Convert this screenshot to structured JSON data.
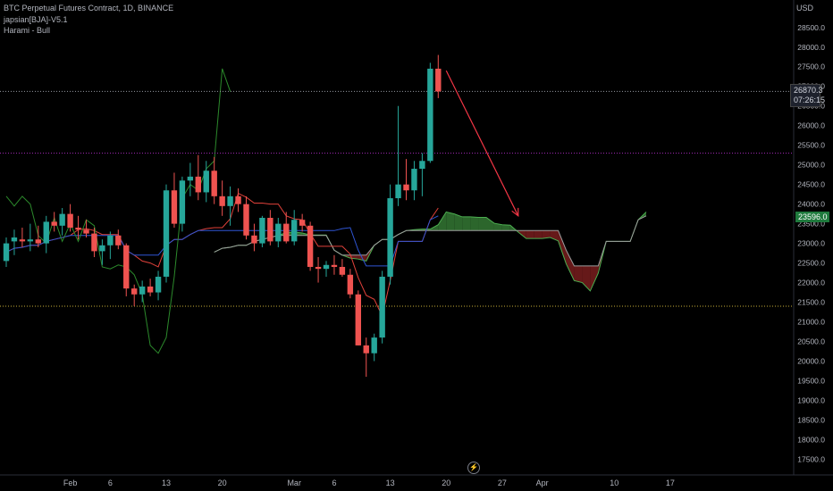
{
  "header": {
    "symbol_line": "BTC Perpetual Futures Contract, 1D, BINANCE",
    "indicator_1": "japsian[BJA]-V5.1",
    "indicator_2": "Harami - Bull"
  },
  "axis": {
    "currency": "USD",
    "current_price": "26870.3",
    "countdown": "07:26:15",
    "target_price": "23596.0"
  },
  "colors": {
    "background": "#000000",
    "up": "#26a69a",
    "down": "#ef5350",
    "cloud_bull": "#2e6b2e",
    "cloud_bear": "#6b1a1a",
    "arrow": "#f23645",
    "tenkan": "#e0413a",
    "kijun": "#2f55d4",
    "chikou": "#2c8a2c",
    "span_a": "#4caf50"
  },
  "icons": {
    "replay": "lightning-icon"
  },
  "chart_data": {
    "type": "candlestick",
    "title": "BTC Perpetual Futures Contract, 1D, BINANCE",
    "ylim": [
      17100,
      29200
    ],
    "y_ticks": [
      17500,
      18000,
      18500,
      19000,
      19500,
      20000,
      20500,
      21000,
      21500,
      22000,
      22500,
      23000,
      23500,
      24000,
      24500,
      25000,
      25500,
      26000,
      26500,
      27000,
      27500,
      28000,
      28500
    ],
    "x_ticks": [
      {
        "index": 8,
        "label": "Feb"
      },
      {
        "index": 13,
        "label": "6"
      },
      {
        "index": 20,
        "label": "13"
      },
      {
        "index": 27,
        "label": "20"
      },
      {
        "index": 36,
        "label": "Mar"
      },
      {
        "index": 41,
        "label": "6"
      },
      {
        "index": 48,
        "label": "13"
      },
      {
        "index": 55,
        "label": "20"
      },
      {
        "index": 62,
        "label": "27"
      },
      {
        "index": 67,
        "label": "Apr"
      },
      {
        "index": 76,
        "label": "10"
      },
      {
        "index": 83,
        "label": "17"
      }
    ],
    "candles": [
      {
        "o": 22550,
        "h": 23150,
        "l": 22400,
        "c": 23000
      },
      {
        "o": 23050,
        "h": 23350,
        "l": 22700,
        "c": 23150
      },
      {
        "o": 23100,
        "h": 23400,
        "l": 22900,
        "c": 23050
      },
      {
        "o": 23050,
        "h": 23500,
        "l": 22800,
        "c": 23100
      },
      {
        "o": 23100,
        "h": 23450,
        "l": 22900,
        "c": 23000
      },
      {
        "o": 23000,
        "h": 23700,
        "l": 22750,
        "c": 23550
      },
      {
        "o": 23550,
        "h": 23800,
        "l": 23300,
        "c": 23450
      },
      {
        "o": 23450,
        "h": 23900,
        "l": 23200,
        "c": 23750
      },
      {
        "o": 23750,
        "h": 24000,
        "l": 23300,
        "c": 23400
      },
      {
        "o": 23400,
        "h": 23700,
        "l": 23100,
        "c": 23350
      },
      {
        "o": 23350,
        "h": 23600,
        "l": 23150,
        "c": 23250
      },
      {
        "o": 23250,
        "h": 23400,
        "l": 22650,
        "c": 22800
      },
      {
        "o": 22800,
        "h": 23100,
        "l": 22450,
        "c": 22950
      },
      {
        "o": 22950,
        "h": 23300,
        "l": 22600,
        "c": 23200
      },
      {
        "o": 23200,
        "h": 23350,
        "l": 22850,
        "c": 22950
      },
      {
        "o": 22950,
        "h": 23000,
        "l": 21650,
        "c": 21850
      },
      {
        "o": 21850,
        "h": 21950,
        "l": 21400,
        "c": 21700
      },
      {
        "o": 21700,
        "h": 22050,
        "l": 21500,
        "c": 21900
      },
      {
        "o": 21900,
        "h": 22100,
        "l": 21650,
        "c": 21750
      },
      {
        "o": 21750,
        "h": 22300,
        "l": 21550,
        "c": 22150
      },
      {
        "o": 22150,
        "h": 24500,
        "l": 22000,
        "c": 24350
      },
      {
        "o": 24350,
        "h": 24800,
        "l": 23400,
        "c": 23500
      },
      {
        "o": 23500,
        "h": 24700,
        "l": 23300,
        "c": 24600
      },
      {
        "o": 24600,
        "h": 25050,
        "l": 24200,
        "c": 24700
      },
      {
        "o": 24700,
        "h": 25250,
        "l": 24100,
        "c": 24300
      },
      {
        "o": 24300,
        "h": 25100,
        "l": 24050,
        "c": 24850
      },
      {
        "o": 24850,
        "h": 25200,
        "l": 24000,
        "c": 24200
      },
      {
        "o": 24200,
        "h": 24600,
        "l": 23700,
        "c": 23950
      },
      {
        "o": 23950,
        "h": 24450,
        "l": 23450,
        "c": 24200
      },
      {
        "o": 24200,
        "h": 24400,
        "l": 23800,
        "c": 24000
      },
      {
        "o": 24000,
        "h": 24200,
        "l": 23100,
        "c": 23200
      },
      {
        "o": 23200,
        "h": 23500,
        "l": 22800,
        "c": 23000
      },
      {
        "o": 23000,
        "h": 23700,
        "l": 22900,
        "c": 23650
      },
      {
        "o": 23650,
        "h": 23850,
        "l": 22950,
        "c": 23050
      },
      {
        "o": 23050,
        "h": 23650,
        "l": 22900,
        "c": 23500
      },
      {
        "o": 23500,
        "h": 23800,
        "l": 23000,
        "c": 23050
      },
      {
        "o": 23050,
        "h": 23850,
        "l": 22950,
        "c": 23600
      },
      {
        "o": 23600,
        "h": 23750,
        "l": 23300,
        "c": 23450
      },
      {
        "o": 23450,
        "h": 23550,
        "l": 22300,
        "c": 22400
      },
      {
        "o": 22400,
        "h": 22650,
        "l": 22000,
        "c": 22350
      },
      {
        "o": 22350,
        "h": 22550,
        "l": 22150,
        "c": 22450
      },
      {
        "o": 22450,
        "h": 22700,
        "l": 22200,
        "c": 22400
      },
      {
        "o": 22400,
        "h": 22600,
        "l": 22150,
        "c": 22200
      },
      {
        "o": 22200,
        "h": 22350,
        "l": 21600,
        "c": 21700
      },
      {
        "o": 21700,
        "h": 21800,
        "l": 20400,
        "c": 20400
      },
      {
        "o": 20400,
        "h": 20600,
        "l": 19600,
        "c": 20200
      },
      {
        "o": 20200,
        "h": 20700,
        "l": 20000,
        "c": 20600
      },
      {
        "o": 20600,
        "h": 22300,
        "l": 20450,
        "c": 22150
      },
      {
        "o": 22150,
        "h": 24500,
        "l": 21950,
        "c": 24150
      },
      {
        "o": 24150,
        "h": 26500,
        "l": 23950,
        "c": 24500
      },
      {
        "o": 24500,
        "h": 25150,
        "l": 24100,
        "c": 24350
      },
      {
        "o": 24350,
        "h": 25100,
        "l": 24100,
        "c": 24900
      },
      {
        "o": 24900,
        "h": 25300,
        "l": 24200,
        "c": 25100
      },
      {
        "o": 25100,
        "h": 27600,
        "l": 25050,
        "c": 27450
      },
      {
        "o": 27450,
        "h": 27800,
        "l": 26700,
        "c": 26870
      }
    ],
    "levels": [
      {
        "price": 26870.3,
        "color": "#9598a1",
        "style": "dotted"
      },
      {
        "price": 25300,
        "color": "#9c27b0",
        "style": "dotted"
      },
      {
        "price": 21400,
        "color": "#c9b037",
        "style": "dotted"
      }
    ],
    "arrow": {
      "from": {
        "index": 55,
        "price": 27400
      },
      "to": {
        "index": 64,
        "price": 23700
      }
    }
  }
}
